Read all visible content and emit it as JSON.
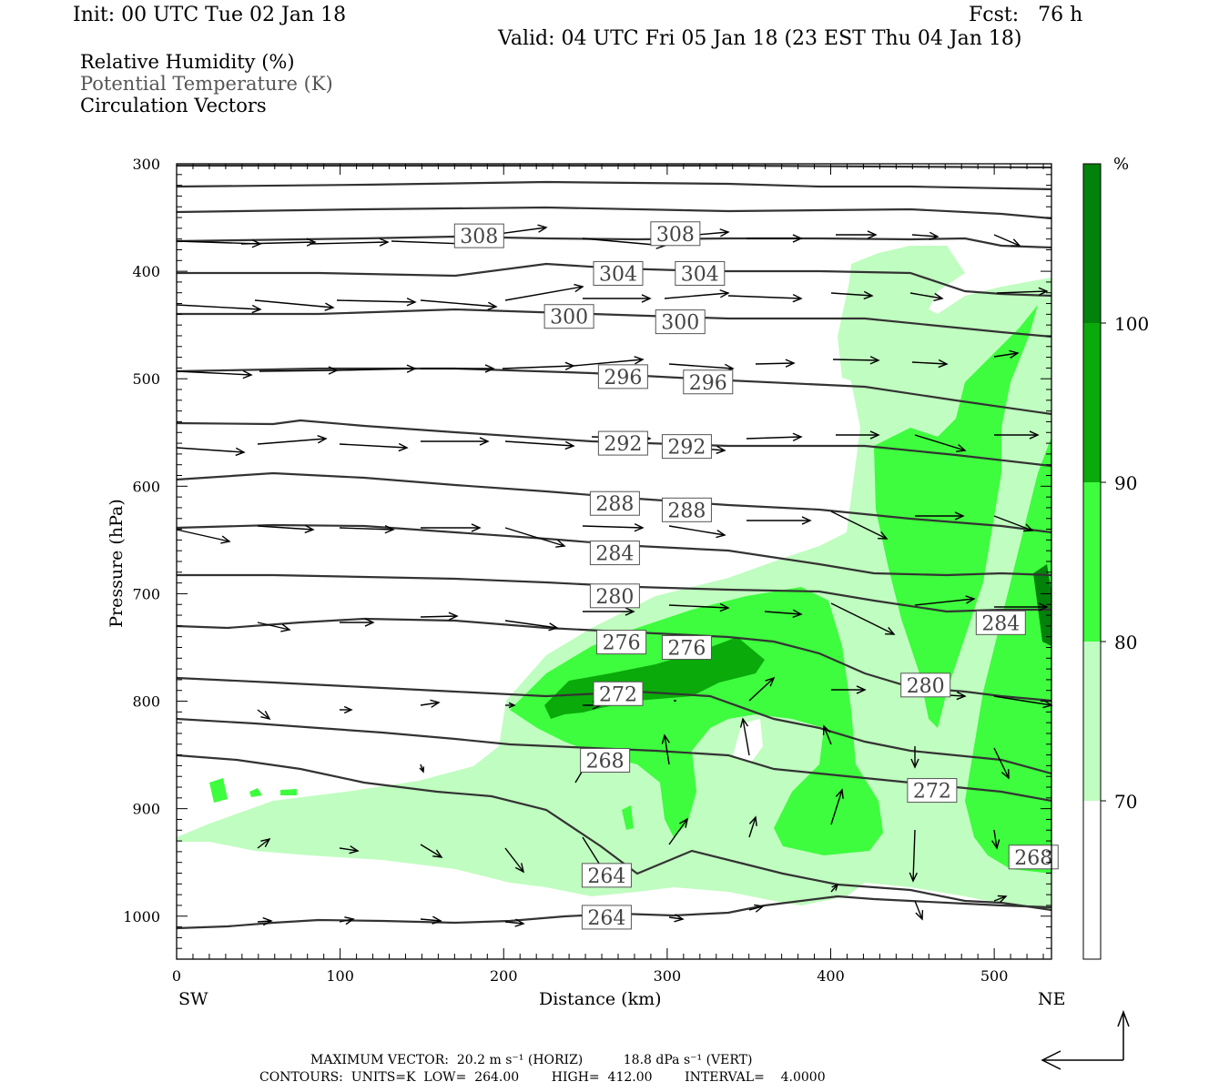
{
  "header": {
    "init": "Init: 00 UTC Tue 02 Jan 18",
    "fcst": "Fcst:   76 h",
    "valid": "Valid: 04 UTC Fri 05 Jan 18 (23 EST Thu 04 Jan 18)"
  },
  "legend": {
    "line1": "Relative Humidity (%)",
    "line2": "Potential Temperature (K)",
    "line3": "Circulation Vectors"
  },
  "colors": {
    "rh70": "#c0fdc0",
    "rh80": "#3efc3e",
    "rh90": "#0aaa0a",
    "rh100": "#02820a",
    "contour": "#333333",
    "arrow": "#000000"
  },
  "chart_data": {
    "type": "heatmap",
    "xlabel": "Distance (km)",
    "ylabel": "Pressure (hPa)",
    "xlim": [
      0,
      535
    ],
    "ylim": [
      1040,
      300
    ],
    "x_ticks": [
      "0",
      "100",
      "200",
      "300",
      "400",
      "500"
    ],
    "y_ticks": [
      "300",
      "400",
      "500",
      "600",
      "700",
      "800",
      "900",
      "1000"
    ],
    "x_left_label": "SW",
    "x_right_label": "NE",
    "colorbar": {
      "unit": "%",
      "levels": [
        "70",
        "80",
        "90",
        "100"
      ]
    },
    "theta_contour_labels": [
      {
        "text": "308",
        "x": 185,
        "p": 367
      },
      {
        "text": "308",
        "x": 305,
        "p": 365
      },
      {
        "text": "304",
        "x": 270,
        "p": 402
      },
      {
        "text": "304",
        "x": 320,
        "p": 402
      },
      {
        "text": "300",
        "x": 240,
        "p": 442
      },
      {
        "text": "300",
        "x": 308,
        "p": 447
      },
      {
        "text": "296",
        "x": 273,
        "p": 498
      },
      {
        "text": "296",
        "x": 325,
        "p": 503
      },
      {
        "text": "292",
        "x": 273,
        "p": 560
      },
      {
        "text": "292",
        "x": 312,
        "p": 563
      },
      {
        "text": "288",
        "x": 268,
        "p": 616
      },
      {
        "text": "288",
        "x": 312,
        "p": 622
      },
      {
        "text": "284",
        "x": 268,
        "p": 662
      },
      {
        "text": "284",
        "x": 504,
        "p": 727
      },
      {
        "text": "280",
        "x": 268,
        "p": 702
      },
      {
        "text": "280",
        "x": 458,
        "p": 785
      },
      {
        "text": "276",
        "x": 272,
        "p": 745
      },
      {
        "text": "276",
        "x": 312,
        "p": 750
      },
      {
        "text": "272",
        "x": 270,
        "p": 793
      },
      {
        "text": "272",
        "x": 462,
        "p": 883
      },
      {
        "text": "268",
        "x": 262,
        "p": 855
      },
      {
        "text": "268",
        "x": 524,
        "p": 945
      },
      {
        "text": "264",
        "x": 263,
        "p": 962
      },
      {
        "text": "264",
        "x": 263,
        "p": 1001
      }
    ],
    "footer": {
      "max_vector": "MAXIMUM VECTOR:  20.2 m s⁻¹ (HORIZ)          18.8 dPa s⁻¹ (VERT)",
      "contours": "CONTOURS:  UNITS=K  LOW=  264.00        HIGH=  412.00        INTERVAL=    4.0000"
    }
  }
}
